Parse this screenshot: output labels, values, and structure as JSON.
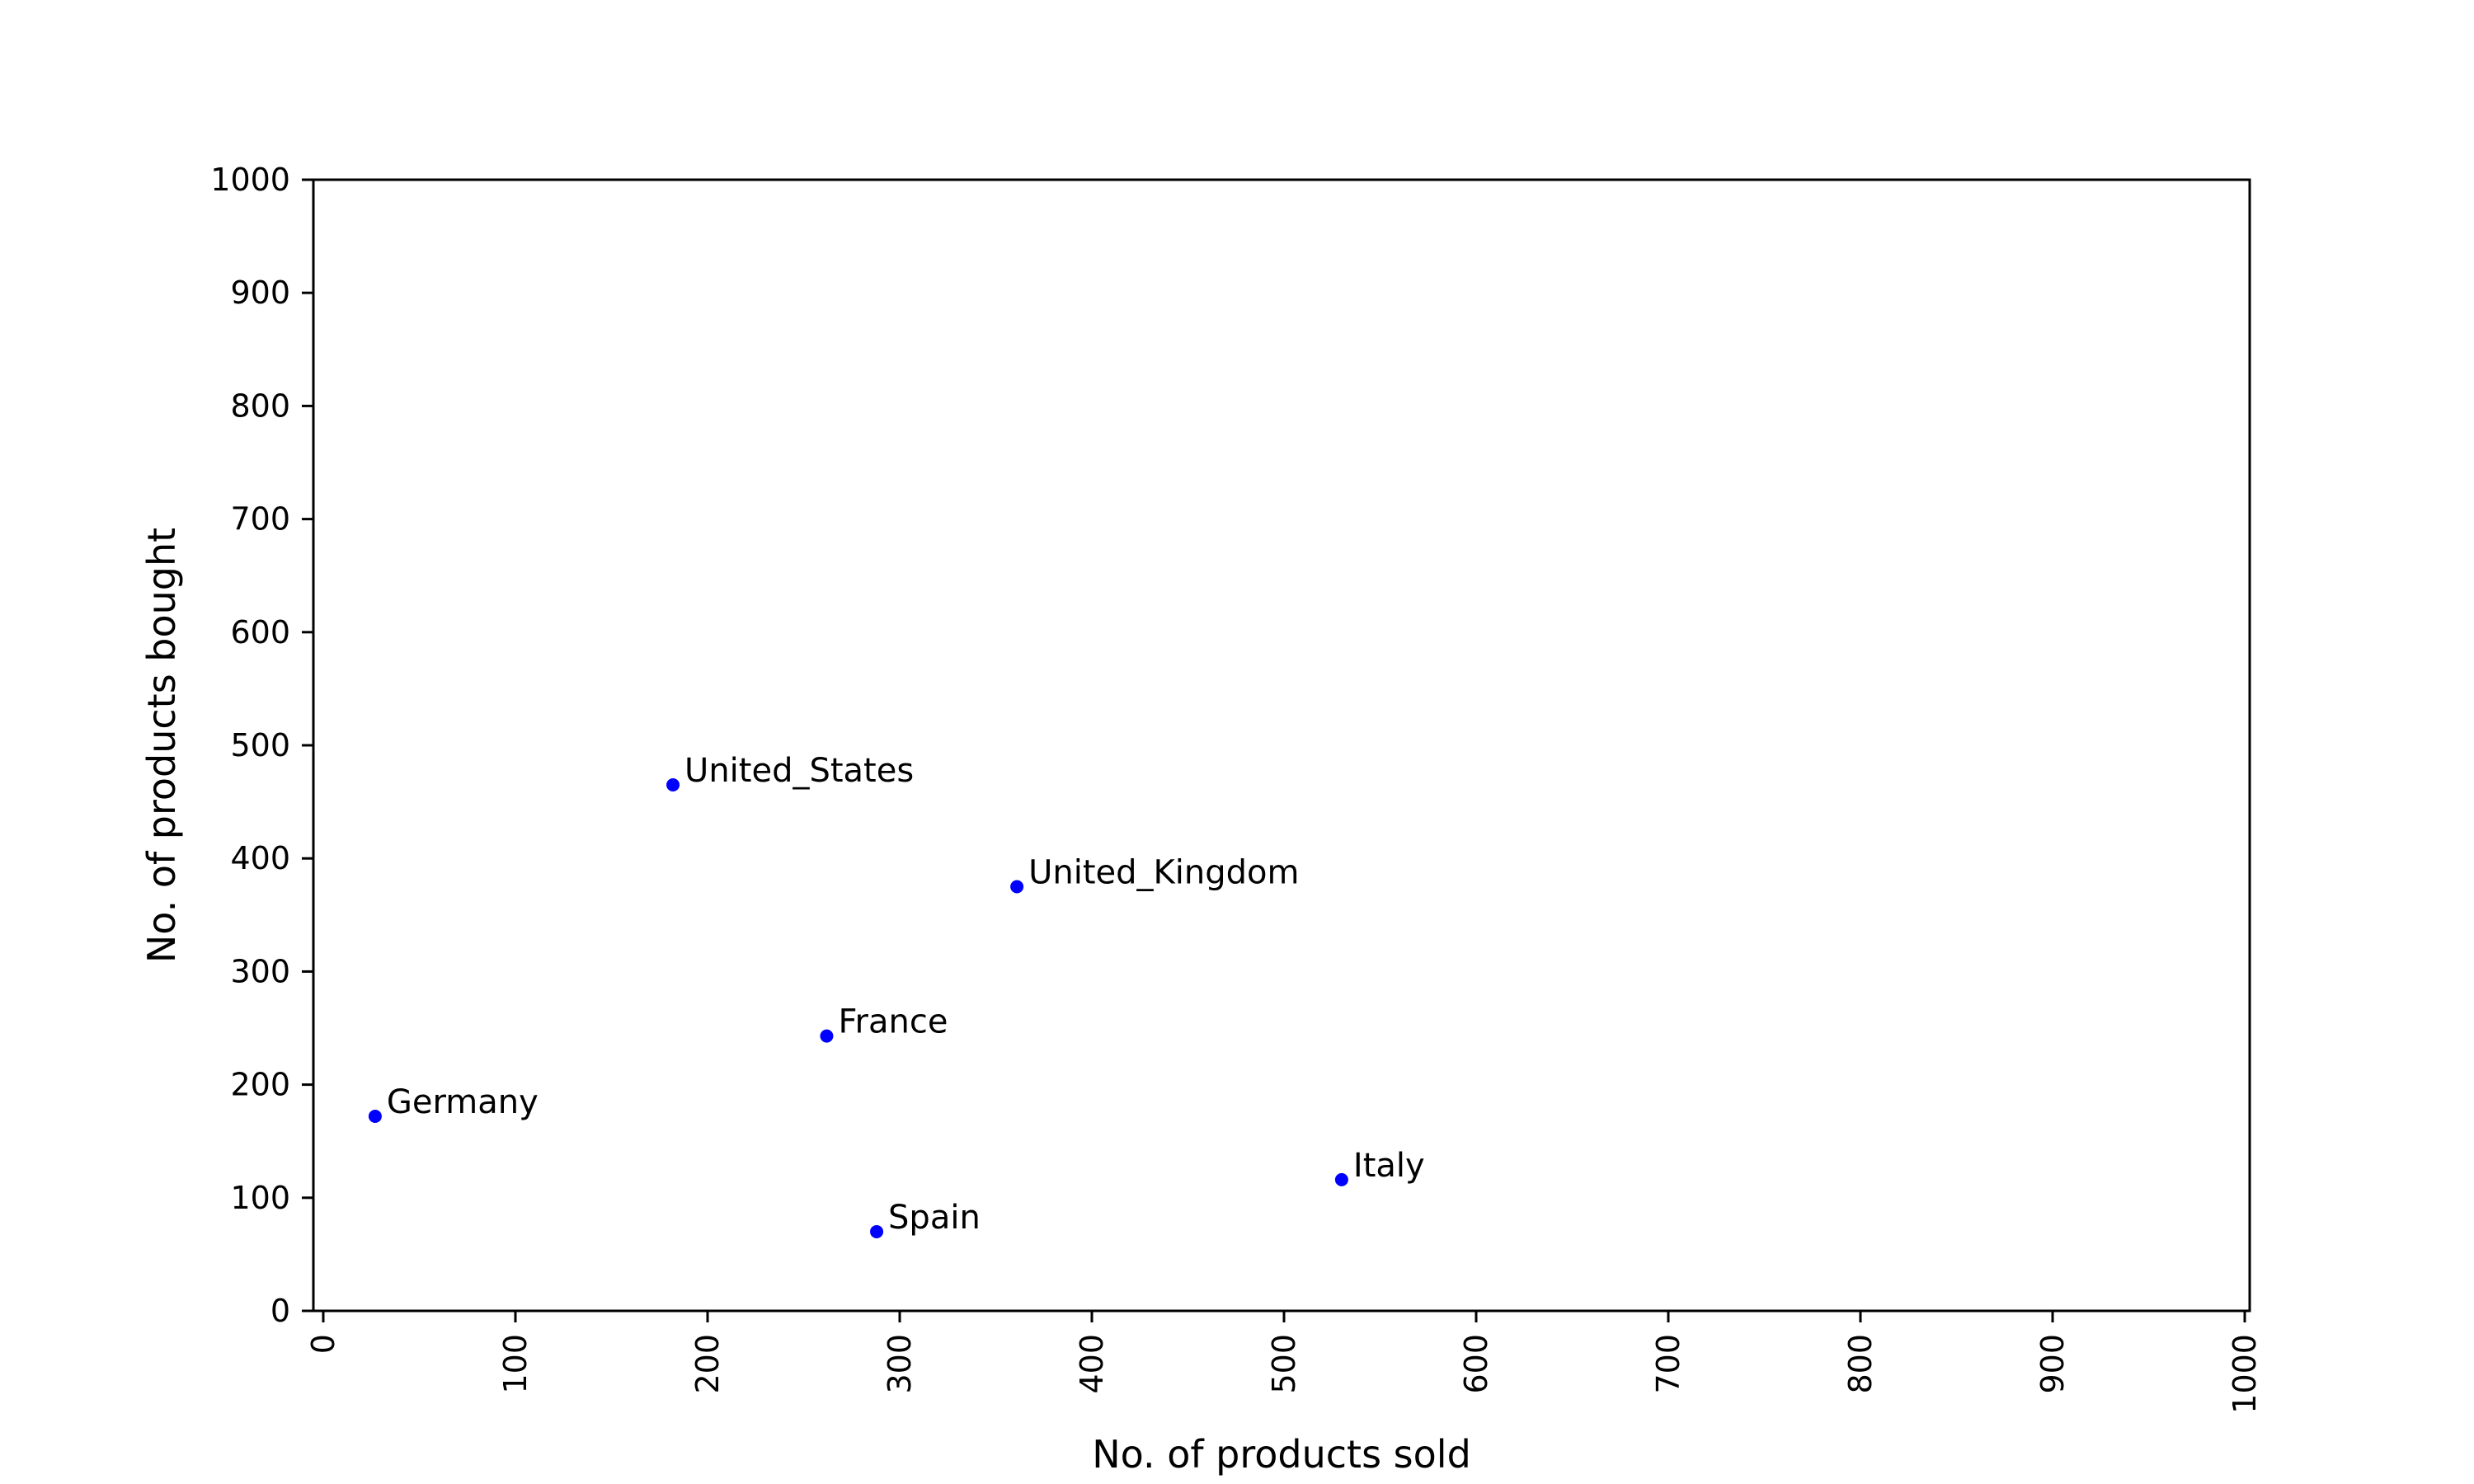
{
  "chart_data": {
    "type": "scatter",
    "title": "",
    "xlabel": "No. of products sold",
    "ylabel": "No. of products bought",
    "xlim": [
      0,
      1000
    ],
    "ylim": [
      0,
      1000
    ],
    "xticks": [
      "0",
      "100",
      "200",
      "300",
      "400",
      "500",
      "600",
      "700",
      "800",
      "900",
      "1000"
    ],
    "yticks": [
      "0",
      "100",
      "200",
      "300",
      "400",
      "500",
      "600",
      "700",
      "800",
      "900",
      "1000"
    ],
    "grid": false,
    "legend": "none",
    "marker_color": "#0000ff",
    "points": [
      {
        "label": "United_States",
        "x": 182,
        "y": 465
      },
      {
        "label": "United_Kingdom",
        "x": 361,
        "y": 375
      },
      {
        "label": "France",
        "x": 262,
        "y": 243
      },
      {
        "label": "Germany",
        "x": 27,
        "y": 172
      },
      {
        "label": "Italy",
        "x": 530,
        "y": 116
      },
      {
        "label": "Spain",
        "x": 288,
        "y": 70
      }
    ]
  }
}
